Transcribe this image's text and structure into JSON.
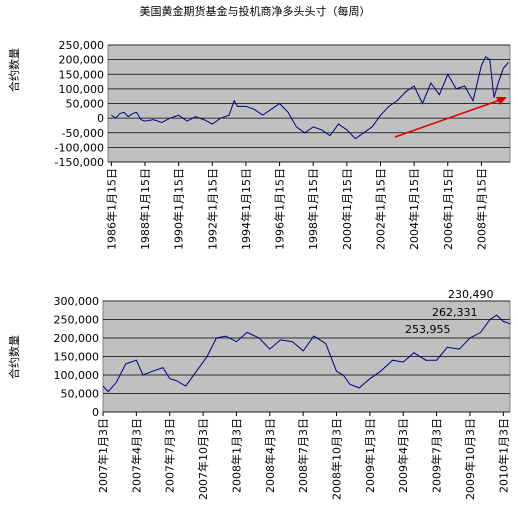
{
  "chart_data": [
    {
      "type": "line",
      "title": "美国黄金期货基金与投机商净多头头寸（每周）",
      "ylabel": "合约数量",
      "xlim": [
        1985.8,
        2009.7
      ],
      "ylim": [
        -150000,
        250000
      ],
      "xticks": [
        {
          "value": 1986,
          "label": "1986年1月15日"
        },
        {
          "value": 1988,
          "label": "1988年1月15日"
        },
        {
          "value": 1990,
          "label": "1990年1月15日"
        },
        {
          "value": 1992,
          "label": "1992年1月15日"
        },
        {
          "value": 1994,
          "label": "1994年1月15日"
        },
        {
          "value": 1996,
          "label": "1996年1月15日"
        },
        {
          "value": 1998,
          "label": "1998年1月15日"
        },
        {
          "value": 2000,
          "label": "2000年1月15日"
        },
        {
          "value": 2002,
          "label": "2002年1月15日"
        },
        {
          "value": 2004,
          "label": "2004年1月15日"
        },
        {
          "value": 2006,
          "label": "2006年1月15日"
        },
        {
          "value": 2008,
          "label": "2008年1月15日"
        }
      ],
      "yticks": [
        {
          "value": -150000,
          "label": "-150,000"
        },
        {
          "value": -100000,
          "label": "-100,000"
        },
        {
          "value": -50000,
          "label": "-50,000"
        },
        0,
        {
          "value": 50000,
          "label": "50,000"
        },
        {
          "value": 100000,
          "label": "100,000"
        },
        {
          "value": 150000,
          "label": "150,000"
        },
        {
          "value": 200000,
          "label": "200,000"
        },
        {
          "value": 250000,
          "label": "250,000"
        }
      ],
      "grid": true,
      "series": [
        {
          "color": "#000080",
          "x": [
            1986,
            1986.25,
            1986.5,
            1986.75,
            1987,
            1987.25,
            1987.5,
            1987.75,
            1988,
            1988.5,
            1989,
            1989.5,
            1990,
            1990.5,
            1991,
            1991.5,
            1992,
            1992.5,
            1993,
            1993.3,
            1993.5,
            1994,
            1994.5,
            1995,
            1995.5,
            1996,
            1996.5,
            1997,
            1997.5,
            1998,
            1998.5,
            1999,
            1999.5,
            2000,
            2000.5,
            2001,
            2001.5,
            2002,
            2002.5,
            2003,
            2003.5,
            2004,
            2004.5,
            2005,
            2005.5,
            2006,
            2006.5,
            2007,
            2007.5,
            2008,
            2008.25,
            2008.5,
            2008.75,
            2009,
            2009.3,
            2009.6
          ],
          "values": [
            10000,
            0,
            15000,
            20000,
            5000,
            15000,
            20000,
            -5000,
            -10000,
            -5000,
            -15000,
            0,
            10000,
            -10000,
            5000,
            -5000,
            -20000,
            0,
            10000,
            60000,
            40000,
            40000,
            30000,
            10000,
            30000,
            50000,
            20000,
            -30000,
            -50000,
            -30000,
            -40000,
            -60000,
            -20000,
            -40000,
            -70000,
            -50000,
            -30000,
            10000,
            40000,
            60000,
            90000,
            110000,
            50000,
            120000,
            80000,
            150000,
            100000,
            110000,
            60000,
            180000,
            210000,
            200000,
            70000,
            120000,
            170000,
            190000
          ]
        }
      ]
    },
    {
      "type": "line",
      "ylabel": "合约数量",
      "xlim": [
        2007,
        2010.05
      ],
      "ylim": [
        0,
        300000
      ],
      "xticks": [
        {
          "value": 2007,
          "label": "2007年1月3日"
        },
        {
          "value": 2007.25,
          "label": "2007年4月3日"
        },
        {
          "value": 2007.5,
          "label": "2007年7月3日"
        },
        {
          "value": 2007.75,
          "label": "2007年10月3日"
        },
        {
          "value": 2008,
          "label": "2008年1月3日"
        },
        {
          "value": 2008.25,
          "label": "2008年4月3日"
        },
        {
          "value": 2008.5,
          "label": "2008年7月3日"
        },
        {
          "value": 2008.75,
          "label": "2008年10月3日"
        },
        {
          "value": 2009,
          "label": "2009年1月3日"
        },
        {
          "value": 2009.25,
          "label": "2009年4月3日"
        },
        {
          "value": 2009.5,
          "label": "2009年7月3日"
        },
        {
          "value": 2009.75,
          "label": "2009年10月3日"
        },
        {
          "value": 2010,
          "label": "2010年1月3日"
        }
      ],
      "yticks": [
        0,
        {
          "value": 50000,
          "label": "50,000"
        },
        {
          "value": 100000,
          "label": "100,000"
        },
        {
          "value": 150000,
          "label": "150,000"
        },
        {
          "value": 200000,
          "label": "200,000"
        },
        {
          "value": 250000,
          "label": "250,000"
        },
        {
          "value": 300000,
          "label": "300,000"
        }
      ],
      "grid": true,
      "annotations": [
        "230,490",
        "262,331",
        "253,955"
      ],
      "series": [
        {
          "color": "#000080",
          "x": [
            2007,
            2007.04,
            2007.1,
            2007.17,
            2007.25,
            2007.3,
            2007.37,
            2007.45,
            2007.5,
            2007.55,
            2007.62,
            2007.7,
            2007.78,
            2007.85,
            2007.92,
            2008,
            2008.08,
            2008.17,
            2008.25,
            2008.33,
            2008.42,
            2008.5,
            2008.58,
            2008.67,
            2008.75,
            2008.8,
            2008.85,
            2008.92,
            2009,
            2009.08,
            2009.17,
            2009.25,
            2009.33,
            2009.42,
            2009.5,
            2009.58,
            2009.67,
            2009.75,
            2009.83,
            2009.9,
            2009.95,
            2010,
            2010.05
          ],
          "values": [
            70000,
            55000,
            80000,
            130000,
            140000,
            100000,
            110000,
            120000,
            90000,
            85000,
            70000,
            110000,
            150000,
            200000,
            205000,
            190000,
            215000,
            200000,
            170000,
            195000,
            190000,
            165000,
            205000,
            185000,
            110000,
            100000,
            75000,
            65000,
            90000,
            110000,
            140000,
            135000,
            160000,
            140000,
            140000,
            175000,
            170000,
            200000,
            215000,
            250000,
            262000,
            245000,
            238000
          ]
        }
      ]
    }
  ]
}
